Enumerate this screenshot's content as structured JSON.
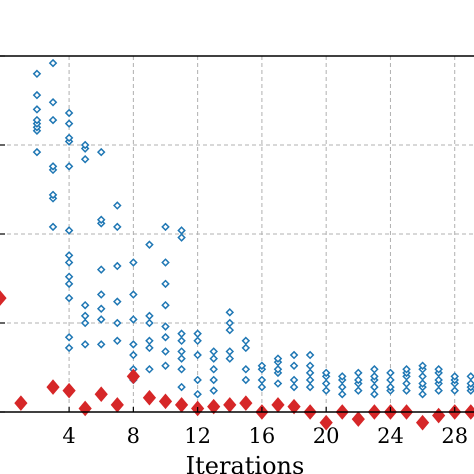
{
  "chart_data": {
    "type": "scatter",
    "xlabel": "Iterations",
    "ylabel": "",
    "title": "",
    "xlim": [
      -0.3,
      29.2
    ],
    "ylim": [
      0,
      1
    ],
    "y_axis_labels_shown": false,
    "x_ticks": [
      4,
      8,
      12,
      16,
      20,
      24,
      28
    ],
    "x_tick_labels": [
      "4",
      "8",
      "12",
      "16",
      "20",
      "24",
      "28"
    ],
    "y_gridlines": [
      0.25,
      0.5,
      0.75
    ],
    "grid": true,
    "grid_style": "dashed",
    "legend": "none",
    "colors": {
      "candidates": "#1f77b4",
      "best": "#d62728",
      "grid": "#b0b0b0",
      "axes": "#000000"
    },
    "series": [
      {
        "marker": "open-diamond",
        "x": [
          2,
          2,
          2,
          2,
          2,
          2,
          2,
          2,
          3,
          3,
          3,
          3,
          3,
          3,
          3,
          3,
          4,
          4,
          4,
          4,
          4,
          4,
          4,
          4,
          4,
          4,
          4,
          4,
          4,
          5,
          5,
          5,
          5,
          5,
          5,
          5,
          6,
          6,
          6,
          6,
          6,
          6,
          6,
          6,
          7,
          7,
          7,
          7,
          7,
          7,
          8,
          8,
          8,
          8,
          8,
          8,
          8,
          9,
          9,
          9,
          9,
          9,
          9,
          10,
          10,
          10,
          10,
          10,
          10,
          10,
          10,
          11,
          11,
          11,
          11,
          11,
          11,
          11,
          11,
          12,
          12,
          12,
          12,
          12,
          13,
          13,
          13,
          13,
          13,
          14,
          14,
          14,
          14,
          14,
          15,
          15,
          15,
          15,
          16,
          16,
          16,
          16,
          17,
          17,
          17,
          17,
          17,
          18,
          18,
          18,
          18,
          19,
          19,
          19,
          19,
          19,
          20,
          20,
          20,
          20,
          21,
          21,
          21,
          21,
          22,
          22,
          22,
          22,
          23,
          23,
          23,
          23,
          23,
          24,
          24,
          24,
          24,
          25,
          25,
          25,
          25,
          25,
          26,
          26,
          26,
          26,
          26,
          26,
          27,
          27,
          27,
          27,
          27,
          28,
          28,
          28,
          28,
          29,
          29,
          29,
          29
        ],
        "y": [
          0.73,
          0.79,
          0.8,
          0.81,
          0.82,
          0.85,
          0.89,
          0.95,
          0.52,
          0.6,
          0.61,
          0.68,
          0.69,
          0.82,
          0.87,
          0.98,
          0.18,
          0.21,
          0.32,
          0.36,
          0.38,
          0.42,
          0.44,
          0.51,
          0.69,
          0.76,
          0.77,
          0.81,
          0.84,
          0.19,
          0.25,
          0.27,
          0.3,
          0.71,
          0.74,
          0.75,
          0.19,
          0.26,
          0.29,
          0.33,
          0.4,
          0.53,
          0.54,
          0.73,
          0.2,
          0.25,
          0.31,
          0.41,
          0.52,
          0.58,
          0.09,
          0.12,
          0.16,
          0.19,
          0.26,
          0.33,
          0.42,
          0.12,
          0.18,
          0.2,
          0.25,
          0.27,
          0.47,
          0.13,
          0.17,
          0.21,
          0.24,
          0.3,
          0.36,
          0.42,
          0.52,
          0.07,
          0.12,
          0.15,
          0.17,
          0.2,
          0.22,
          0.49,
          0.51,
          0.05,
          0.09,
          0.16,
          0.2,
          0.22,
          0.06,
          0.09,
          0.12,
          0.15,
          0.17,
          0.15,
          0.17,
          0.23,
          0.25,
          0.28,
          0.09,
          0.12,
          0.18,
          0.2,
          0.07,
          0.09,
          0.12,
          0.13,
          0.08,
          0.11,
          0.12,
          0.14,
          0.15,
          0.07,
          0.09,
          0.13,
          0.16,
          0.07,
          0.09,
          0.11,
          0.13,
          0.16,
          0.06,
          0.08,
          0.1,
          0.11,
          0.05,
          0.07,
          0.09,
          0.1,
          0.06,
          0.08,
          0.09,
          0.11,
          0.05,
          0.07,
          0.09,
          0.1,
          0.12,
          0.06,
          0.07,
          0.09,
          0.11,
          0.06,
          0.08,
          0.1,
          0.11,
          0.12,
          0.05,
          0.07,
          0.08,
          0.1,
          0.12,
          0.13,
          0.06,
          0.08,
          0.09,
          0.11,
          0.12,
          0.06,
          0.08,
          0.09,
          0.1,
          0.06,
          0.07,
          0.08,
          0.1
        ]
      },
      {
        "marker": "filled-diamond",
        "x": [
          -0.3,
          1,
          3,
          4,
          5,
          6,
          7,
          8,
          9,
          10,
          11,
          12,
          13,
          14,
          15,
          16,
          17,
          18,
          19,
          20,
          21,
          22,
          23,
          24,
          25,
          26,
          27,
          28,
          29
        ],
        "y": [
          0.32,
          0.025,
          0.07,
          0.06,
          0.01,
          0.05,
          0.02,
          0.1,
          0.04,
          0.03,
          0.02,
          0.01,
          0.015,
          0.02,
          0.025,
          0.0,
          0.02,
          0.015,
          0.0,
          -0.03,
          0.0,
          -0.02,
          0.0,
          0.0,
          0.0,
          -0.03,
          -0.01,
          0.0,
          0.0
        ]
      }
    ]
  }
}
